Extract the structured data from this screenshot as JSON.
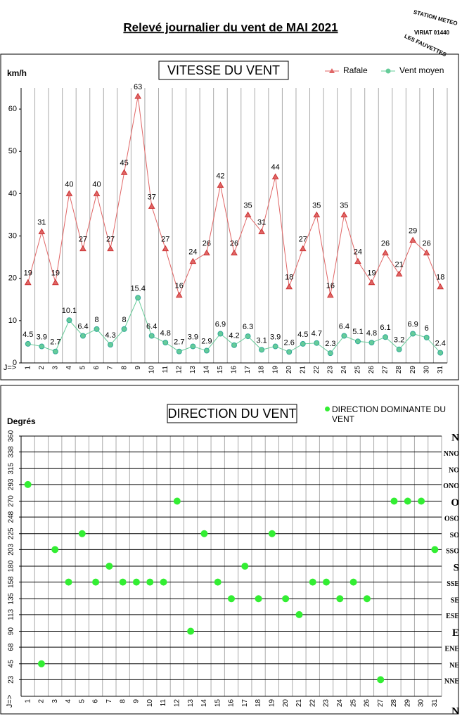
{
  "header": {
    "title": "Relevé journalier du vent de MAI 2021",
    "stamp": [
      "STATION METEO",
      "VIRIAT 01440",
      "LES FAUVETTES"
    ]
  },
  "chart_data": [
    {
      "type": "line",
      "title": "VITESSE DU VENT",
      "ylabel": "km/h",
      "xlabel": "J=>",
      "categories": [
        "1",
        "2",
        "3",
        "4",
        "5",
        "6",
        "7",
        "8",
        "9",
        "10",
        "11",
        "12",
        "13",
        "14",
        "15",
        "16",
        "17",
        "18",
        "19",
        "20",
        "21",
        "22",
        "23",
        "24",
        "25",
        "26",
        "27",
        "28",
        "29",
        "30",
        "31"
      ],
      "ylim": [
        0,
        65
      ],
      "yticks": [
        0,
        10,
        20,
        30,
        40,
        50,
        60
      ],
      "vgrid": true,
      "legend": "top-right",
      "series": [
        {
          "name": "Rafale",
          "color": "#e06666",
          "marker": "triangle",
          "values": [
            19,
            31,
            19,
            40,
            27,
            40,
            27,
            45,
            63,
            37,
            27,
            16,
            24,
            26,
            42,
            26,
            35,
            31,
            44,
            18,
            27,
            35,
            16,
            35,
            24,
            19,
            26,
            21,
            29,
            26,
            18
          ]
        },
        {
          "name": "Vent moyen",
          "color": "#66cc99",
          "marker": "circle",
          "values": [
            4.5,
            3.9,
            2.7,
            10.1,
            6.4,
            8,
            4.3,
            8,
            15.4,
            6.4,
            4.8,
            2.7,
            3.9,
            2.9,
            6.9,
            4.2,
            6.3,
            3.1,
            3.9,
            2.6,
            4.5,
            4.7,
            2.3,
            6.4,
            5.1,
            4.8,
            6.1,
            3.2,
            6.9,
            6,
            2.4
          ]
        }
      ]
    },
    {
      "type": "scatter",
      "title": "DIRECTION DU VENT",
      "ylabel": "Degrés",
      "xlabel": "J=>",
      "categories": [
        "1",
        "2",
        "3",
        "4",
        "5",
        "6",
        "7",
        "8",
        "9",
        "10",
        "11",
        "12",
        "13",
        "14",
        "15",
        "16",
        "17",
        "18",
        "19",
        "20",
        "21",
        "22",
        "23",
        "24",
        "25",
        "26",
        "27",
        "28",
        "29",
        "30",
        "31"
      ],
      "ylim": [
        0,
        360
      ],
      "yticks": [
        23,
        45,
        68,
        90,
        113,
        135,
        158,
        180,
        203,
        225,
        248,
        270,
        293,
        315,
        338,
        360
      ],
      "y2lim": [
        0,
        360
      ],
      "y2ticks": [
        {
          "value": 0,
          "label": "N"
        },
        {
          "value": 23,
          "label": "NNE"
        },
        {
          "value": 45,
          "label": "NE"
        },
        {
          "value": 68,
          "label": "ENE"
        },
        {
          "value": 90,
          "label": "E"
        },
        {
          "value": 113,
          "label": "ESE"
        },
        {
          "value": 135,
          "label": "SE"
        },
        {
          "value": 158,
          "label": "SSE"
        },
        {
          "value": 180,
          "label": "S"
        },
        {
          "value": 203,
          "label": "SSO"
        },
        {
          "value": 225,
          "label": "SO"
        },
        {
          "value": 248,
          "label": "OSO"
        },
        {
          "value": 270,
          "label": "O"
        },
        {
          "value": 293,
          "label": "ONO"
        },
        {
          "value": 315,
          "label": "NO"
        },
        {
          "value": 338,
          "label": "NNO"
        },
        {
          "value": 360,
          "label": "N"
        }
      ],
      "grid": true,
      "vgrid": true,
      "legend": "top-right",
      "series": [
        {
          "name": "DIRECTION DOMINANTE DU VENT",
          "color": "#33ee33",
          "values": [
            293,
            45,
            203,
            158,
            225,
            158,
            180,
            158,
            158,
            158,
            158,
            270,
            90,
            225,
            158,
            135,
            180,
            135,
            225,
            135,
            113,
            158,
            158,
            135,
            158,
            135,
            23,
            270,
            270,
            270,
            203
          ]
        }
      ]
    }
  ]
}
